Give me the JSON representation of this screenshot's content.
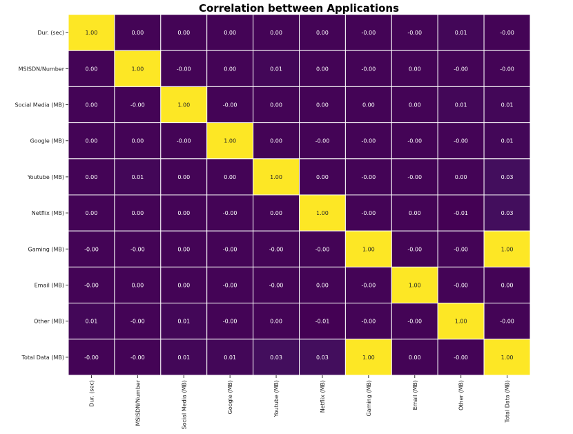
{
  "chart_data": {
    "type": "heatmap",
    "title": "Correlation bettween Applications",
    "xlabel": "",
    "ylabel": "",
    "rows": [
      "Dur. (sec)",
      "MSISDN/Number",
      "Social Media (MB)",
      "Google (MB)",
      "Youtube (MB)",
      "Netflix (MB)",
      "Gaming (MB)",
      "Email (MB)",
      "Other (MB)",
      "Total Data (MB)"
    ],
    "columns": [
      "Dur. (sec)",
      "MSISDN/Number",
      "Social Media (MB)",
      "Google (MB)",
      "Youtube (MB)",
      "Netflix (MB)",
      "Gaming (MB)",
      "Email (MB)",
      "Other (MB)",
      "Total Data (MB)"
    ],
    "values": [
      [
        1.0,
        0.0,
        0.0,
        0.0,
        0.0,
        0.0,
        -0.0,
        -0.0,
        0.01,
        -0.0
      ],
      [
        0.0,
        1.0,
        -0.0,
        0.0,
        0.01,
        0.0,
        -0.0,
        0.0,
        -0.0,
        -0.0
      ],
      [
        0.0,
        -0.0,
        1.0,
        -0.0,
        0.0,
        0.0,
        0.0,
        0.0,
        0.01,
        0.01
      ],
      [
        0.0,
        0.0,
        -0.0,
        1.0,
        0.0,
        -0.0,
        -0.0,
        -0.0,
        -0.0,
        0.01
      ],
      [
        0.0,
        0.01,
        0.0,
        0.0,
        1.0,
        0.0,
        -0.0,
        -0.0,
        0.0,
        0.03
      ],
      [
        0.0,
        0.0,
        0.0,
        -0.0,
        0.0,
        1.0,
        -0.0,
        0.0,
        -0.01,
        0.03
      ],
      [
        -0.0,
        -0.0,
        0.0,
        -0.0,
        -0.0,
        -0.0,
        1.0,
        -0.0,
        -0.0,
        1.0
      ],
      [
        -0.0,
        0.0,
        0.0,
        -0.0,
        -0.0,
        0.0,
        -0.0,
        1.0,
        -0.0,
        0.0
      ],
      [
        0.01,
        -0.0,
        0.01,
        -0.0,
        0.0,
        -0.01,
        -0.0,
        -0.0,
        1.0,
        -0.0
      ],
      [
        -0.0,
        -0.0,
        0.01,
        0.01,
        0.03,
        0.03,
        1.0,
        0.0,
        -0.0,
        1.0
      ]
    ],
    "colormap": "viridis",
    "colors": {
      "low": "#440154",
      "high": "#fde725",
      "gridline": "#ffffff"
    },
    "grid": true,
    "legend": "none"
  }
}
